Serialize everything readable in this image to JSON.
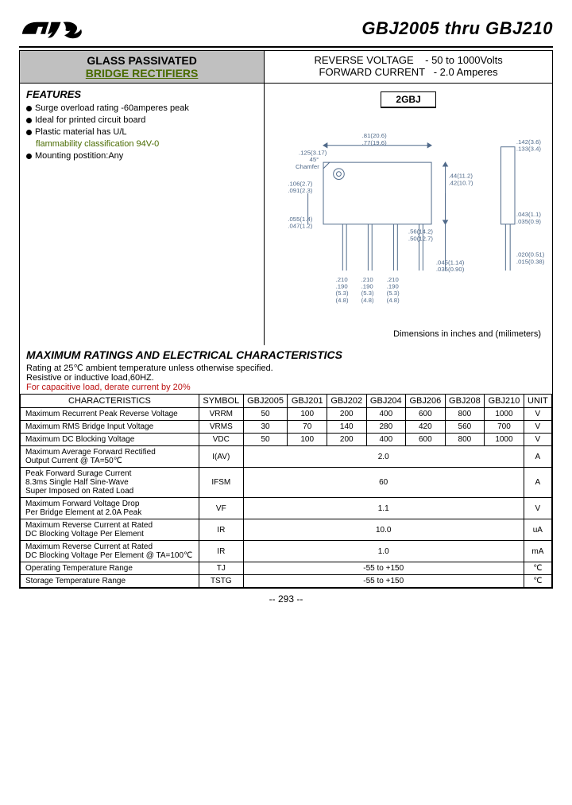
{
  "header": {
    "title": "GBJ2005 thru GBJ210"
  },
  "top_left": {
    "line1": "GLASS PASSIVATED",
    "line2": "BRIDGE RECTIFIERS"
  },
  "top_right": {
    "line1": "REVERSE VOLTAGE    - 50 to 1000Volts",
    "line2": "FORWARD CURRENT   - 2.0 Amperes"
  },
  "features": {
    "heading": "FEATURES",
    "items": [
      "Surge overload rating -60amperes peak",
      "Ideal for printed circuit board",
      "Plastic material has U/L",
      "Mounting postition:Any"
    ],
    "sub_line": "flammability classification 94V-0"
  },
  "package_label": "2GBJ",
  "diagram": {
    "dims": {
      "a": ".125(3.17)",
      "b": "45°",
      "c": "Chamfer",
      "d": ".81(20.6)",
      "e": ".77(19.6)",
      "f": ".106(2.7)",
      "g": ".091(2.3)",
      "h": ".055(1.4)",
      "i": ".047(1.2)",
      "j": ".44(11.2)",
      "k": ".42(10.7)",
      "l": ".56(14.2)",
      "m": ".50(12.7)",
      "n": ".045(1.14)",
      "o": ".035(0.90)",
      "p1": ".210",
      "p2": ".190",
      "p3": "(5.3)",
      "p4": "(4.8)",
      "q": ".142(3.6)",
      "r": ".133(3.4)",
      "s": ".043(1.1)",
      "t": ".035(0.9)",
      "u": ".020(0.51)",
      "v": ".015(0.38)"
    },
    "caption": "Dimensions in inches and (milimeters)"
  },
  "ratings": {
    "heading": "MAXIMUM RATINGS AND ELECTRICAL CHARACTERISTICS",
    "note1": "Rating at 25℃ ambient temperature unless otherwise specified.",
    "note2": "Resistive or inductive load,60HZ.",
    "note3": "For capacitive load, derate current by 20%",
    "cols": [
      "CHARACTERISTICS",
      "SYMBOL",
      "GBJ2005",
      "GBJ201",
      "GBJ202",
      "GBJ204",
      "GBJ206",
      "GBJ208",
      "GBJ210",
      "UNIT"
    ],
    "rows": [
      {
        "c": "Maximum Recurrent Peak Reverse Voltage",
        "s": "VRRM",
        "v": [
          "50",
          "100",
          "200",
          "400",
          "600",
          "800",
          "1000"
        ],
        "u": "V"
      },
      {
        "c": "Maximum RMS Bridge Input Voltage",
        "s": "VRMS",
        "v": [
          "30",
          "70",
          "140",
          "280",
          "420",
          "560",
          "700"
        ],
        "u": "V"
      },
      {
        "c": "Maximum DC Blocking Voltage",
        "s": "VDC",
        "v": [
          "50",
          "100",
          "200",
          "400",
          "600",
          "800",
          "1000"
        ],
        "u": "V"
      },
      {
        "c": "Maximum Average Forward Rectified\nOutput Current                           @ TA=50℃",
        "s": "I(AV)",
        "span": "2.0",
        "u": "A"
      },
      {
        "c": "Peak Forward Surage Current\n8.3ms Single Half Sine-Wave\nSuper Imposed on Rated Load",
        "s": "IFSM",
        "span": "60",
        "u": "A"
      },
      {
        "c": "Maximum Forward Voltage Drop\nPer Bridge Element at 2.0A Peak",
        "s": "VF",
        "span": "1.1",
        "u": "V"
      },
      {
        "c": "Maximum Reverse Current at Rated\nDC Blocking Voltage Per Element",
        "s": "IR",
        "span": "10.0",
        "u": "uA"
      },
      {
        "c": "Maximum Reverse Current at Rated\nDC Blocking Voltage Per Element    @ TA=100℃",
        "s": "IR",
        "span": "1.0",
        "u": "mA"
      },
      {
        "c": "Operating Temperature Range",
        "s": "TJ",
        "span": "-55 to +150",
        "u": "℃"
      },
      {
        "c": "Storage Temperature Range",
        "s": "TSTG",
        "span": "-55 to +150",
        "u": "℃"
      }
    ]
  },
  "page_number": "-- 293 --"
}
